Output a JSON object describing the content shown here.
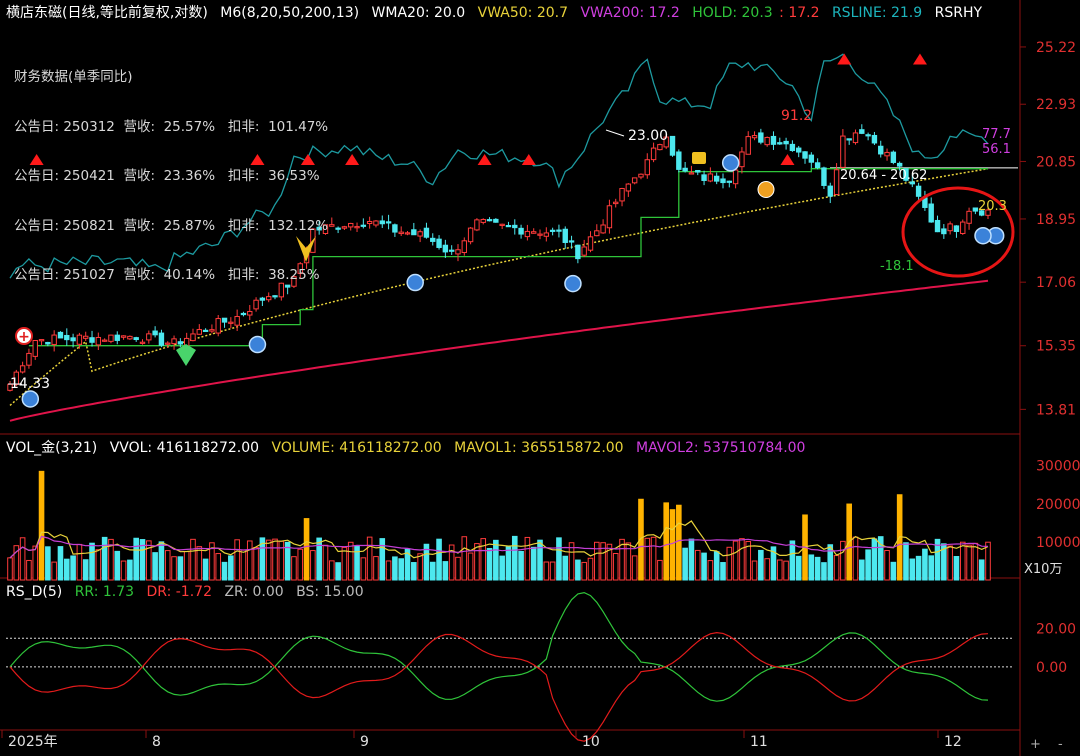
{
  "colors": {
    "up": "#ff3b3b",
    "down": "#4de8ef",
    "vwa50": "#e8d23a",
    "vwa200": "#e0144a",
    "hold": "#2fc43a",
    "rsline": "#1d9aa0",
    "vol_gold": "#ffb300",
    "mavol2": "#c43fd6",
    "axis": "#e03030",
    "white": "#ffffff"
  },
  "main_header": {
    "title": "横店东磁(日线,等比前复权,对数)",
    "m6": "M6(8,20,50,200,13)",
    "wma20": "WMA20: 20.0",
    "vwa50": "VWA50: 20.7",
    "vwa200": "VWA200: 17.2",
    "hold_a": "HOLD: 20.3",
    "hold_b": ": 17.2",
    "rsline": "RSLINE: 21.9",
    "rsrhy": "RSRHY"
  },
  "financial": {
    "title": "财务数据(单季同比)",
    "rows": [
      "公告日: 250312  营收:  25.57%   扣非:  101.47%",
      "公告日: 250421  营收:  23.36%   扣非:  36.53%",
      "公告日: 250821  营收:  25.87%   扣非:  132.12%",
      "公告日: 251027  营收:  40.14%   扣非:  38.25%"
    ]
  },
  "vol_header": {
    "name": "VOL_金(3,21)",
    "vvol": "VVOL: 416118272.00",
    "volume": "VOLUME: 416118272.00",
    "mavol1": "MAVOL1: 365515872.00",
    "mavol2": "MAVOL2: 537510784.00"
  },
  "rs_header": {
    "name": "RS_D(5)",
    "rr": "RR: 1.73",
    "dr": "DR: -1.72",
    "zr": "ZR: 0.00",
    "bs": "BS: 15.00"
  },
  "controls": {
    "plus": "+",
    "minus": "-"
  },
  "chart_data": [
    {
      "type": "candlestick",
      "scale": "log",
      "ylim": [
        13.3,
        26.2
      ],
      "yticks": [
        "25.22",
        "22.93",
        "20.85",
        "18.95",
        "17.06",
        "15.35",
        "13.81"
      ],
      "xticks": [
        "2025年",
        "8",
        "9",
        "10",
        "11",
        "12"
      ],
      "annotations": [
        "14.33",
        "23.00",
        "91.2",
        "20.64 - 20.62",
        "77.7",
        "56.1",
        "20.3",
        "-18.1"
      ],
      "ref_line": 20.63
    },
    {
      "type": "bar",
      "title": "VOL",
      "ylim": [
        0,
        32000
      ],
      "yticks": [
        "30000",
        "20000",
        "10000"
      ],
      "unit": "X10万"
    },
    {
      "type": "line",
      "title": "RS_D",
      "ylim": [
        -32,
        34
      ],
      "yticks": [
        "20.00",
        "0.00"
      ],
      "levels": [
        15,
        0
      ]
    }
  ]
}
